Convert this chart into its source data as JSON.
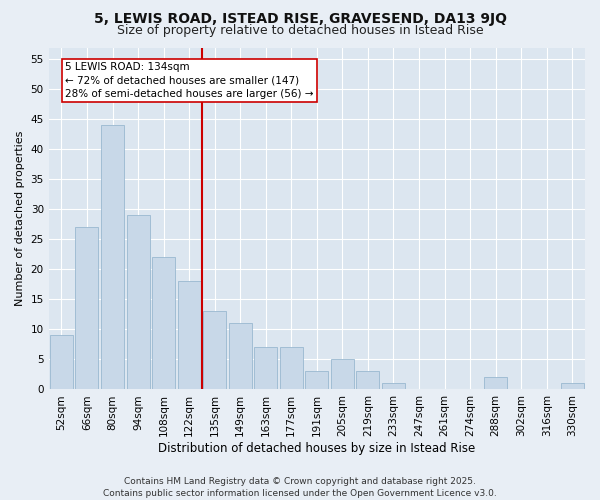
{
  "title": "5, LEWIS ROAD, ISTEAD RISE, GRAVESEND, DA13 9JQ",
  "subtitle": "Size of property relative to detached houses in Istead Rise",
  "xlabel": "Distribution of detached houses by size in Istead Rise",
  "ylabel": "Number of detached properties",
  "categories": [
    "52sqm",
    "66sqm",
    "80sqm",
    "94sqm",
    "108sqm",
    "122sqm",
    "135sqm",
    "149sqm",
    "163sqm",
    "177sqm",
    "191sqm",
    "205sqm",
    "219sqm",
    "233sqm",
    "247sqm",
    "261sqm",
    "274sqm",
    "288sqm",
    "302sqm",
    "316sqm",
    "330sqm"
  ],
  "values": [
    9,
    27,
    44,
    29,
    22,
    18,
    13,
    11,
    7,
    7,
    3,
    5,
    3,
    1,
    0,
    0,
    0,
    2,
    0,
    0,
    1
  ],
  "bar_color": "#c8d8e8",
  "bar_edge_color": "#9ab8d0",
  "vline_color": "#cc0000",
  "annotation_text": "5 LEWIS ROAD: 134sqm\n← 72% of detached houses are smaller (147)\n28% of semi-detached houses are larger (56) →",
  "annotation_box_facecolor": "#ffffff",
  "annotation_box_edgecolor": "#cc0000",
  "ylim": [
    0,
    57
  ],
  "yticks": [
    0,
    5,
    10,
    15,
    20,
    25,
    30,
    35,
    40,
    45,
    50,
    55
  ],
  "plot_bg_color": "#dce6f0",
  "fig_bg_color": "#e8eef5",
  "footer_text": "Contains HM Land Registry data © Crown copyright and database right 2025.\nContains public sector information licensed under the Open Government Licence v3.0.",
  "title_fontsize": 10,
  "subtitle_fontsize": 9,
  "xlabel_fontsize": 8.5,
  "ylabel_fontsize": 8,
  "tick_fontsize": 7.5,
  "annotation_fontsize": 7.5,
  "footer_fontsize": 6.5
}
